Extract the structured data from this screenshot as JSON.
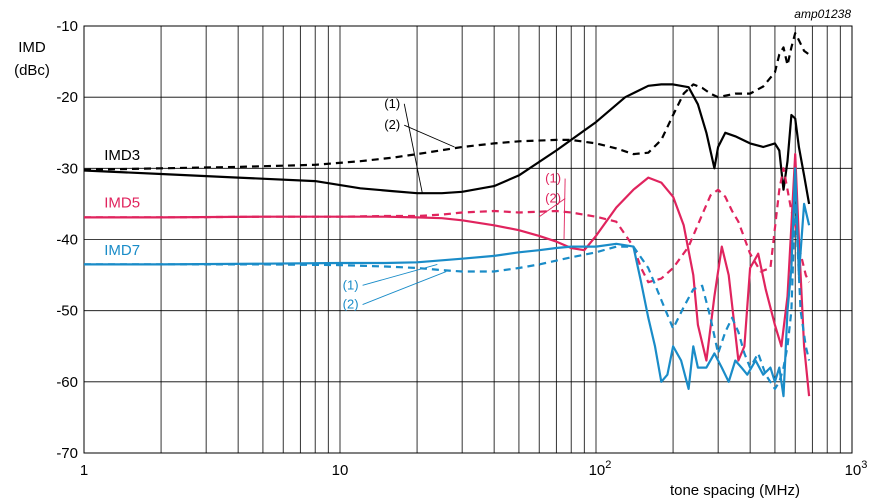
{
  "chart_data": {
    "type": "line",
    "identifier": "amp01238",
    "ylabel_line1": "IMD",
    "ylabel_line2": "(dBc)",
    "xlabel": "tone spacing (MHz)",
    "xscale": "log",
    "xlim": [
      1,
      1000
    ],
    "ylim": [
      -70,
      -10
    ],
    "grid": true,
    "x_ticks": [
      {
        "value": 1,
        "base": "1",
        "exp": ""
      },
      {
        "value": 10,
        "base": "10",
        "exp": ""
      },
      {
        "value": 100,
        "base": "10",
        "exp": "2"
      },
      {
        "value": 1000,
        "base": "10",
        "exp": "3"
      }
    ],
    "y_ticks": [
      {
        "value": -10,
        "label": "-10"
      },
      {
        "value": -20,
        "label": "-20"
      },
      {
        "value": -30,
        "label": "-30"
      },
      {
        "value": -40,
        "label": "-40"
      },
      {
        "value": -50,
        "label": "-50"
      },
      {
        "value": -60,
        "label": "-60"
      },
      {
        "value": -70,
        "label": "-70"
      }
    ],
    "series_labels": [
      {
        "text": "IMD3",
        "color": "#000000",
        "x": 1.2,
        "y": -28.8
      },
      {
        "text": "IMD5",
        "color": "#e0245e",
        "x": 1.2,
        "y": -35.5
      },
      {
        "text": "IMD7",
        "color": "#1a8cc8",
        "x": 1.2,
        "y": -42.2
      }
    ],
    "notes": [
      {
        "text": "(1)",
        "color": "#000000",
        "x": 16,
        "y": -21.5,
        "target": [
          21,
          -33.6
        ]
      },
      {
        "text": "(2)",
        "color": "#000000",
        "x": 16,
        "y": -24.5,
        "target": [
          28,
          -27
        ]
      },
      {
        "text": "(1)",
        "color": "#e0245e",
        "x": 68,
        "y": -32,
        "target": [
          75,
          -40
        ]
      },
      {
        "text": "(2)",
        "color": "#e0245e",
        "x": 68,
        "y": -34.8,
        "target": [
          60,
          -36.8
        ]
      },
      {
        "text": "(1)",
        "color": "#1a8cc8",
        "x": 11,
        "y": -47,
        "target": [
          24,
          -43.5
        ]
      },
      {
        "text": "(2)",
        "color": "#1a8cc8",
        "x": 11,
        "y": -49.7,
        "target": [
          26,
          -44.5
        ]
      }
    ],
    "series": [
      {
        "label": "IMD3 (1)",
        "color": "#000000",
        "dash": "solid",
        "x": [
          1,
          2,
          4,
          8,
          12,
          16,
          20,
          25,
          30,
          40,
          50,
          70,
          100,
          130,
          160,
          180,
          200,
          230,
          250,
          270,
          290,
          300,
          320,
          350,
          400,
          450,
          500,
          520,
          540,
          560,
          580,
          600,
          620,
          650,
          680
        ],
        "y": [
          -30.3,
          -30.8,
          -31.3,
          -31.8,
          -32.8,
          -33.2,
          -33.5,
          -33.5,
          -33.3,
          -32.5,
          -31,
          -27.5,
          -23.5,
          -20,
          -18.4,
          -18.2,
          -18.2,
          -18.6,
          -21,
          -25,
          -30,
          -27,
          -25,
          -25.5,
          -26.5,
          -27,
          -26.5,
          -27.5,
          -33,
          -29,
          -22.5,
          -23,
          -27,
          -31,
          -35
        ]
      },
      {
        "label": "IMD3 (2)",
        "color": "#000000",
        "dash": "dashed",
        "x": [
          1,
          2,
          4,
          8,
          12,
          16,
          20,
          30,
          40,
          50,
          70,
          80,
          100,
          120,
          140,
          160,
          180,
          200,
          220,
          240,
          260,
          280,
          300,
          350,
          400,
          450,
          500,
          520,
          540,
          560,
          580,
          600,
          620,
          650,
          680
        ],
        "y": [
          -30.2,
          -30,
          -29.8,
          -29.5,
          -29,
          -28.5,
          -28,
          -27,
          -26.5,
          -26.2,
          -26,
          -26,
          -26.5,
          -27.2,
          -28,
          -27.8,
          -26,
          -22.5,
          -19.5,
          -18.2,
          -18.7,
          -19.5,
          -20,
          -19.5,
          -19.5,
          -18.5,
          -16.5,
          -14,
          -13,
          -15.5,
          -13,
          -11,
          -12,
          -13.5,
          -14
        ]
      },
      {
        "label": "IMD5 (1)",
        "color": "#e0245e",
        "dash": "solid",
        "x": [
          1,
          2,
          5,
          10,
          15,
          20,
          25,
          30,
          40,
          50,
          60,
          70,
          80,
          90,
          100,
          120,
          140,
          160,
          180,
          200,
          220,
          240,
          250,
          270,
          290,
          310,
          330,
          360,
          380,
          400,
          430,
          460,
          500,
          530,
          560,
          580,
          600,
          620,
          650,
          680
        ],
        "y": [
          -36.9,
          -36.9,
          -36.8,
          -36.8,
          -36.8,
          -36.9,
          -37,
          -37.3,
          -38,
          -38.7,
          -39.5,
          -40.3,
          -41.2,
          -41.5,
          -39.5,
          -35.5,
          -33,
          -31.3,
          -32,
          -34,
          -38,
          -45,
          -52,
          -57,
          -48,
          -41,
          -45,
          -57,
          -55,
          -44,
          -42,
          -47,
          -52,
          -55,
          -48,
          -38,
          -28,
          -40,
          -55,
          -62
        ]
      },
      {
        "label": "IMD5 (2)",
        "color": "#e0245e",
        "dash": "dashed",
        "x": [
          1,
          2,
          5,
          10,
          15,
          20,
          25,
          30,
          40,
          50,
          60,
          70,
          80,
          100,
          120,
          140,
          150,
          160,
          180,
          200,
          230,
          260,
          280,
          300,
          320,
          340,
          360,
          400,
          440,
          480,
          520,
          540,
          560,
          580,
          600,
          630,
          660,
          680
        ],
        "y": [
          -36.9,
          -36.9,
          -36.8,
          -36.8,
          -36.7,
          -36.7,
          -36.5,
          -36.2,
          -36,
          -36.2,
          -36.1,
          -36,
          -36.2,
          -36.8,
          -37.5,
          -41,
          -44,
          -46,
          -45.5,
          -44,
          -41,
          -36.5,
          -33.8,
          -33,
          -34,
          -36,
          -37.5,
          -42,
          -44.5,
          -44,
          -33,
          -30,
          -33,
          -36,
          -38,
          -42,
          -45,
          -46
        ]
      },
      {
        "label": "IMD7 (1)",
        "color": "#1a8cc8",
        "dash": "solid",
        "x": [
          1,
          2,
          5,
          10,
          15,
          20,
          30,
          40,
          50,
          60,
          70,
          80,
          100,
          120,
          140,
          150,
          160,
          170,
          180,
          190,
          200,
          215,
          230,
          240,
          250,
          270,
          290,
          310,
          330,
          350,
          370,
          390,
          420,
          450,
          480,
          500,
          520,
          540,
          560,
          580,
          600,
          620,
          650,
          680
        ],
        "y": [
          -43.5,
          -43.5,
          -43.4,
          -43.3,
          -43.3,
          -43.2,
          -42.7,
          -42.3,
          -41.8,
          -41.5,
          -41.2,
          -41,
          -41,
          -40.6,
          -41,
          -46,
          -51,
          -55,
          -60,
          -59,
          -55,
          -57,
          -61,
          -55,
          -58,
          -58,
          -56,
          -58,
          -60,
          -57,
          -58,
          -59,
          -57,
          -59,
          -58,
          -60,
          -58,
          -62,
          -50,
          -44,
          -30,
          -45,
          -35,
          -38
        ]
      },
      {
        "label": "IMD7 (2)",
        "color": "#1a8cc8",
        "dash": "dashed",
        "x": [
          1,
          2,
          5,
          10,
          15,
          20,
          25,
          30,
          40,
          50,
          60,
          80,
          100,
          120,
          140,
          160,
          180,
          200,
          220,
          240,
          260,
          280,
          300,
          320,
          340,
          360,
          380,
          400,
          430,
          460,
          500,
          520,
          540,
          560,
          580,
          600,
          630,
          660,
          680
        ],
        "y": [
          -43.5,
          -43.5,
          -43.5,
          -43.6,
          -43.8,
          -44,
          -44.3,
          -44.5,
          -44.5,
          -44,
          -43.5,
          -42.5,
          -41.8,
          -41,
          -41,
          -44,
          -48.5,
          -52.5,
          -49.5,
          -47,
          -46.5,
          -51,
          -56,
          -53,
          -51,
          -53,
          -56,
          -58,
          -56,
          -59,
          -61,
          -60,
          -58,
          -55,
          -50,
          -34,
          -50,
          -55,
          -57
        ]
      }
    ]
  }
}
